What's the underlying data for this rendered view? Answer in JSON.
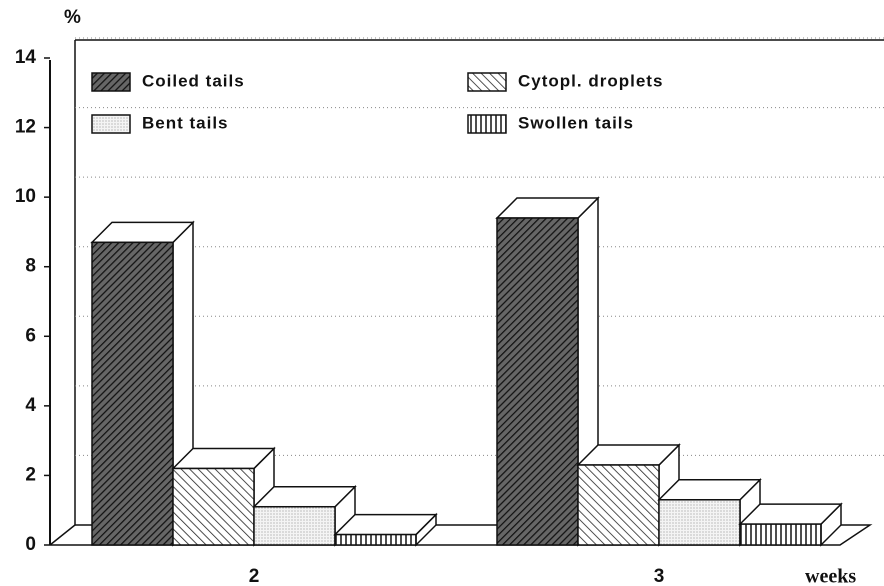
{
  "chart_data": {
    "type": "bar3d",
    "y_label": "%",
    "x_label": "weeks",
    "categories": [
      "2",
      "3"
    ],
    "series": [
      {
        "name": "Coiled tails",
        "color": "#222222",
        "values": [
          8.7,
          9.4
        ]
      },
      {
        "name": "Cytopl. droplets",
        "color": "#333333",
        "values": [
          2.2,
          2.3
        ]
      },
      {
        "name": "Bent tails",
        "color": "#999999",
        "values": [
          1.1,
          1.3
        ]
      },
      {
        "name": "Swollen tails",
        "color": "#333333",
        "values": [
          0.3,
          0.6
        ]
      }
    ],
    "ylim": [
      0,
      14
    ],
    "yticks": [
      0,
      2,
      4,
      6,
      8,
      10,
      12,
      14
    ],
    "grid": true
  }
}
